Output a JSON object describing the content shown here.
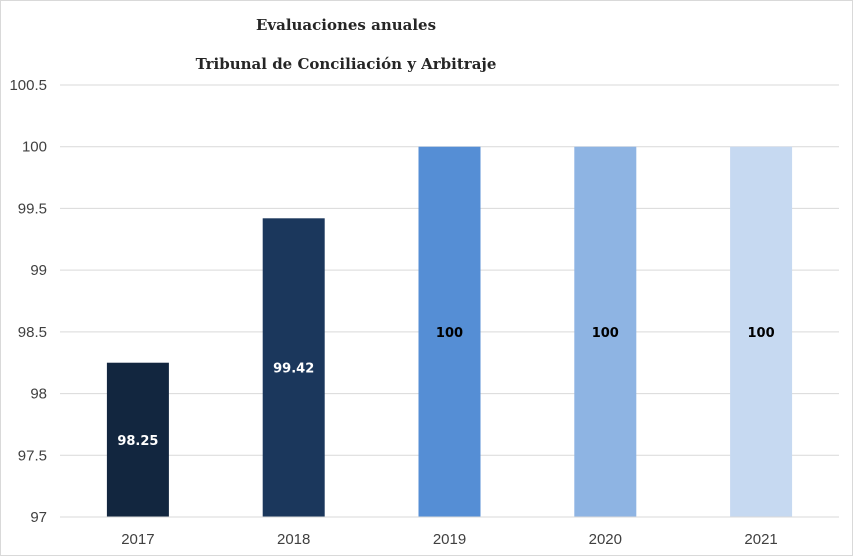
{
  "chart_data": {
    "type": "bar",
    "title": "Evaluaciones anuales",
    "subtitle": "Tribunal de Conciliación y Arbitraje",
    "xlabel": "",
    "ylabel": "",
    "categories": [
      "2017",
      "2018",
      "2019",
      "2020",
      "2021"
    ],
    "values": [
      98.25,
      99.42,
      100,
      100,
      100
    ],
    "data_labels": [
      "98.25",
      "99.42",
      "100",
      "100",
      "100"
    ],
    "bar_colors": [
      "#12263f",
      "#1b375c",
      "#558ed5",
      "#8eb4e3",
      "#c6d9f1"
    ],
    "label_colors": [
      "#ffffff",
      "#ffffff",
      "#000000",
      "#000000",
      "#000000"
    ],
    "ylim": [
      97,
      100.5
    ],
    "yticks": [
      "97",
      "97.5",
      "98",
      "98.5",
      "99",
      "99.5",
      "100",
      "100.5"
    ],
    "ytick_values": [
      97,
      97.5,
      98,
      98.5,
      99,
      99.5,
      100,
      100.5
    ],
    "grid": true,
    "legend": "none"
  }
}
